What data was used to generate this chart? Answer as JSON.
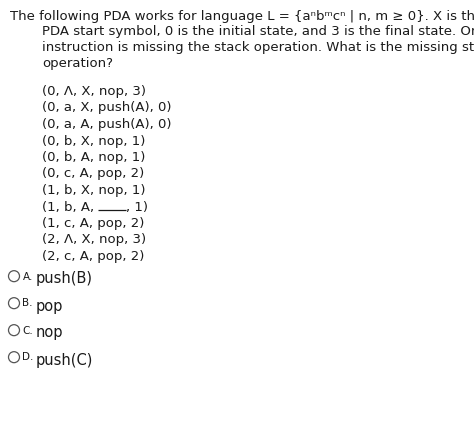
{
  "bg_color": "#ffffff",
  "text_color": "#1a1a1a",
  "title_lines": [
    "The following PDA works for language L = {aⁿbᵐcⁿ | n, m ≥ 0}. X is the",
    "PDA start symbol, 0 is the initial state, and 3 is the final state. One",
    "instruction is missing the stack operation. What is the missing stack",
    "operation?"
  ],
  "title_indent": [
    0,
    1,
    1,
    1
  ],
  "transitions": [
    "(0, Λ, X, nop, 3)",
    "(0, a, X, push(A), 0)",
    "(0, a, A, push(A), 0)",
    "(0, b, X, nop, 1)",
    "(0, b, A, nop, 1)",
    "(0, c, A, pop, 2)",
    "(1, b, X, nop, 1)",
    "(1, b, A, BLANK, 1)",
    "(1, c, A, pop, 2)",
    "(2, Λ, X, nop, 3)",
    "(2, c, A, pop, 2)"
  ],
  "blank_before": "(1, b, A, ",
  "blank_after": ", 1)",
  "options": [
    {
      "label": "A.",
      "text": "push(B)"
    },
    {
      "label": "B.",
      "text": "pop"
    },
    {
      "label": "C.",
      "text": "nop"
    },
    {
      "label": "D.",
      "text": "push(C)"
    }
  ],
  "title_fs": 9.5,
  "trans_fs": 9.5,
  "opt_fs": 10.5,
  "opt_label_fs": 7.5
}
